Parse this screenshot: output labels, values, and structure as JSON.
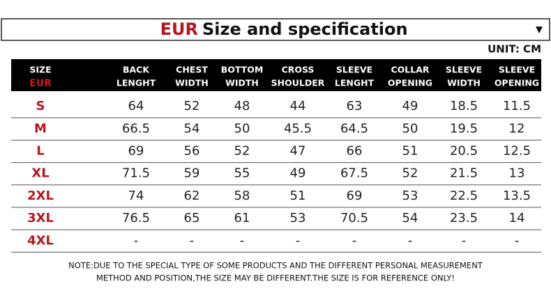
{
  "header": {
    "brand": "EUR",
    "title": "Size and specification",
    "dropdown": "▼",
    "unit": "UNIT: CM"
  },
  "table": {
    "size_header": [
      "SIZE",
      "EUR"
    ],
    "columns": [
      [
        "BACK",
        "LENGHT"
      ],
      [
        "CHEST",
        "WIDTH"
      ],
      [
        "BOTTOM",
        "WIDTH"
      ],
      [
        "CROSS",
        "SHOULDER"
      ],
      [
        "SLEEVE",
        "LENGHT"
      ],
      [
        "COLLAR",
        "OPENING"
      ],
      [
        "SLEEVE",
        "WIDTH"
      ],
      [
        "SLEEVE",
        "OPENING"
      ]
    ],
    "rows": [
      [
        "S",
        64,
        52,
        48,
        44,
        63,
        49,
        18.5,
        11.5
      ],
      [
        "M",
        66.5,
        54,
        50,
        45.5,
        64.5,
        50,
        19.5,
        12
      ],
      [
        "L",
        69,
        56,
        52,
        47,
        66,
        51,
        20.5,
        12.5
      ],
      [
        "XL",
        71.5,
        59,
        55,
        49,
        67.5,
        52,
        21.5,
        13
      ],
      [
        "2XL",
        74,
        62,
        58,
        51,
        69,
        53,
        22.5,
        13.5
      ],
      [
        "3XL",
        76.5,
        65,
        61,
        53,
        70.5,
        54,
        23.5,
        14
      ],
      [
        "4XL",
        "-",
        "-",
        "-",
        "-",
        "-",
        "-",
        "-",
        "-"
      ]
    ]
  },
  "note": [
    "NOTE:DUE TO THE SPECIAL TYPE OF SOME PRODUCTS AND THE DIFFERENT PERSONAL MEASUREMENT",
    "METHOD AND POSITION,THE SIZE MAY BE DIFFERENT.THE SIZE IS FOR REFERENCE ONLY!"
  ]
}
